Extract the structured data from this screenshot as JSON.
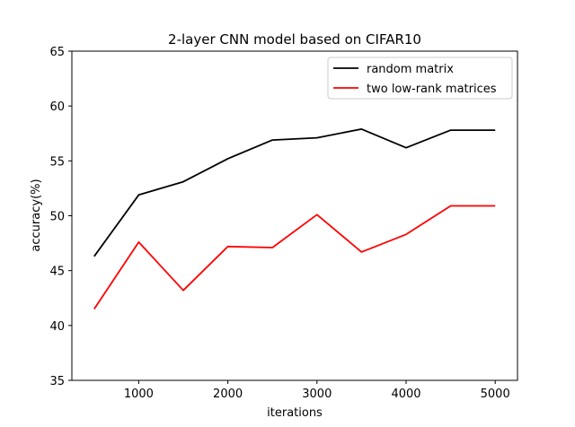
{
  "chart_data": {
    "type": "line",
    "title": "2-layer CNN model based on CIFAR10",
    "xlabel": "iterations",
    "ylabel": "accuracy(%)",
    "xlim": [
      250,
      5250
    ],
    "ylim": [
      35,
      65
    ],
    "xticks": [
      1000,
      2000,
      3000,
      4000,
      5000
    ],
    "yticks": [
      35,
      40,
      45,
      50,
      55,
      60,
      65
    ],
    "grid": false,
    "legend_position": "top-right",
    "x": [
      500,
      1000,
      1500,
      2000,
      2500,
      3000,
      3500,
      4000,
      4500,
      5000
    ],
    "series": [
      {
        "name": "random matrix",
        "color": "#000000",
        "values": [
          46.3,
          51.9,
          53.1,
          55.2,
          56.9,
          57.1,
          57.9,
          56.2,
          57.8,
          57.8
        ]
      },
      {
        "name": "two low-rank matrices",
        "color": "#ff0000",
        "values": [
          41.5,
          47.6,
          43.2,
          47.2,
          47.1,
          50.1,
          46.7,
          48.3,
          50.9,
          50.9
        ]
      }
    ]
  }
}
